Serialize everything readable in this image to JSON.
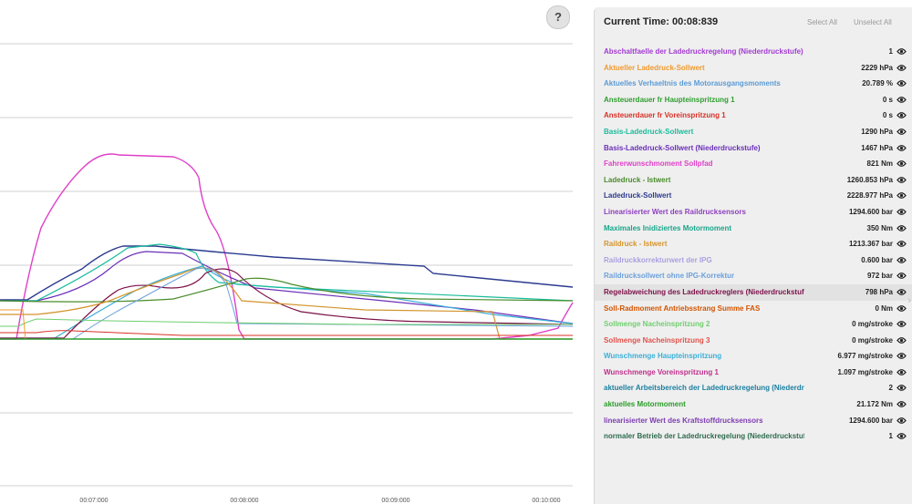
{
  "header": {
    "current_time": "Current Time: 00:08:839",
    "select_all": "Select All",
    "unselect_all": "Unselect All",
    "help": "?"
  },
  "chart_data": {
    "type": "line",
    "x_ticks": [
      "00:07:000",
      "00:08:000",
      "00:09:000",
      "00:10:000"
    ],
    "grid": true,
    "legend": "right panel"
  },
  "signals": [
    {
      "name": "Abschaltfaelle der Ladedruckregelung (Niederdruckstufe)",
      "value": "1",
      "color": "#a23bd1"
    },
    {
      "name": "Aktueller Ladedruck-Sollwert",
      "value": "2229 hPa",
      "color": "#f29a2e"
    },
    {
      "name": "Aktuelles Verhaeltnis des Motorausgangsmoments",
      "value": "20.789 %",
      "color": "#5b9bd5"
    },
    {
      "name": "Ansteuerdauer fr Haupteinspritzung 1",
      "value": "0 s",
      "color": "#2e9e2e"
    },
    {
      "name": "Ansteuerdauer fr Voreinspritzung 1",
      "value": "0 s",
      "color": "#d93025"
    },
    {
      "name": "Basis-Ladedruck-Sollwert",
      "value": "1290 hPa",
      "color": "#1abc9c"
    },
    {
      "name": "Basis-Ladedruck-Sollwert (Niederdruckstufe)",
      "value": "1467 hPa",
      "color": "#6a2fb8"
    },
    {
      "name": "Fahrerwunschmoment Sollpfad",
      "value": "821 Nm",
      "color": "#e040c8"
    },
    {
      "name": "Ladedruck - Istwert",
      "value": "1260.853 hPa",
      "color": "#4a8c2a"
    },
    {
      "name": "Ladedruck-Sollwert",
      "value": "2228.977 hPa",
      "color": "#2b3a8f"
    },
    {
      "name": "Linearisierter Wert des Raildrucksensors",
      "value": "1294.600 bar",
      "color": "#8e3fbf"
    },
    {
      "name": "Maximales Inidiziertes Motormoment",
      "value": "350 Nm",
      "color": "#17a589"
    },
    {
      "name": "Raildruck - Istwert",
      "value": "1213.367 bar",
      "color": "#d4942c"
    },
    {
      "name": "Raildruckkorrekturwert der IPG",
      "value": "0.600 bar",
      "color": "#a9a0e0"
    },
    {
      "name": "Raildrucksollwert ohne IPG-Korrektur",
      "value": "972 bar",
      "color": "#6ca0dc"
    },
    {
      "name": "Regelabweichung des Ladedruckreglers (Niederdruckstufe)",
      "value": "798 hPa",
      "color": "#7b1048"
    },
    {
      "name": "Soll-Radmoment Antriebsstrang Summe FAS",
      "value": "0 Nm",
      "color": "#d35400"
    },
    {
      "name": "Sollmenge Nacheinspritzung 2",
      "value": "0 mg/stroke",
      "color": "#6fcf6f"
    },
    {
      "name": "Sollmenge Nacheinspritzung 3",
      "value": "0 mg/stroke",
      "color": "#e0524a"
    },
    {
      "name": "Wunschmenge Haupteinspritzung",
      "value": "6.977 mg/stroke",
      "color": "#3ab0d8"
    },
    {
      "name": "Wunschmenge Voreinspritzung 1",
      "value": "1.097 mg/stroke",
      "color": "#c0308c"
    },
    {
      "name": "aktueller Arbeitsbereich der Ladedruckregelung (Niederdruckstufe)",
      "value": "2",
      "color": "#1a7fa0"
    },
    {
      "name": "aktuelles Motormoment",
      "value": "21.172 Nm",
      "color": "#2a9d2a"
    },
    {
      "name": "linearisierter Wert des Kraftstoffdrucksensors",
      "value": "1294.600 bar",
      "color": "#7d3cb0"
    },
    {
      "name": "normaler Betrieb der Ladedruckregelung (Niederdruckstufe)",
      "value": "1",
      "color": "#2d6b4f"
    }
  ],
  "highlighted_index": 15
}
